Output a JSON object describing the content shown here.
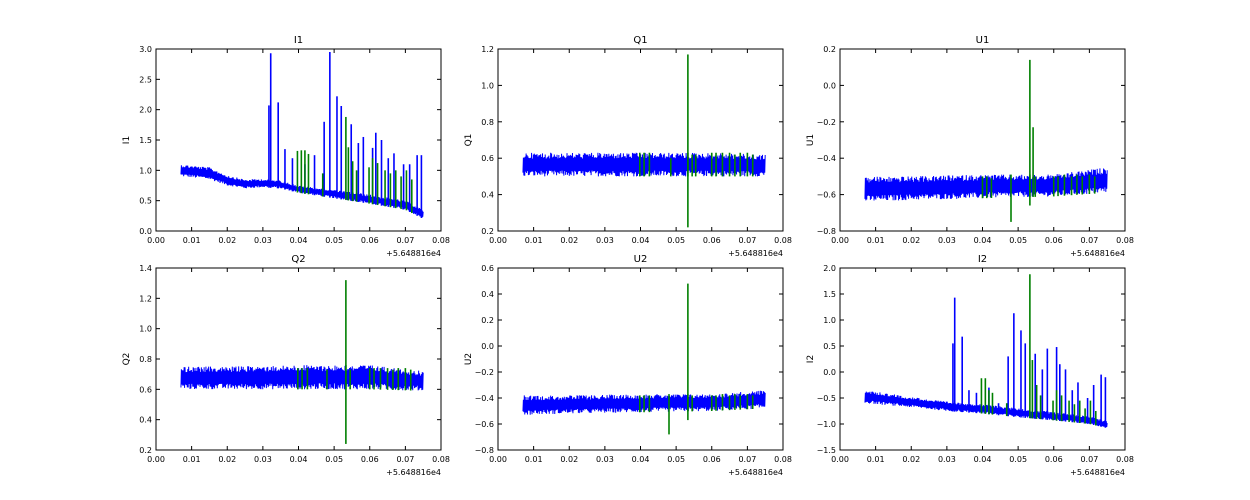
{
  "colors": {
    "series_main": "#0000ff",
    "series_flagged": "#008000",
    "axes": "#000000",
    "background": "#ffffff"
  },
  "chart_data": [
    {
      "type": "line",
      "title": "I1",
      "ylabel": "I1",
      "x_offset_label": "+5.648816e4",
      "xlim": [
        0.0,
        0.08
      ],
      "ylim": [
        0.0,
        3.0
      ],
      "xticks": [
        "0.00",
        "0.01",
        "0.02",
        "0.03",
        "0.04",
        "0.05",
        "0.06",
        "0.07",
        "0.08"
      ],
      "yticks": [
        "0.0",
        "0.5",
        "1.0",
        "1.5",
        "2.0",
        "2.5",
        "3.0"
      ],
      "series": [
        {
          "color": "blue",
          "x_range": [
            0.007,
            0.075
          ],
          "x": [
            0.007,
            0.015,
            0.02,
            0.025,
            0.03,
            0.035,
            0.04,
            0.05,
            0.06,
            0.07,
            0.075
          ],
          "lower": [
            0.9,
            0.85,
            0.75,
            0.7,
            0.72,
            0.7,
            0.63,
            0.54,
            0.45,
            0.35,
            0.2
          ],
          "upper": [
            1.1,
            1.05,
            0.92,
            0.85,
            0.86,
            0.83,
            0.75,
            0.68,
            0.6,
            0.5,
            0.35
          ],
          "spikes": [
            [
              0.0317,
              2.07
            ],
            [
              0.0322,
              2.93
            ],
            [
              0.0343,
              2.12
            ],
            [
              0.0362,
              1.35
            ],
            [
              0.0383,
              1.2
            ],
            [
              0.0418,
              1.1
            ],
            [
              0.0445,
              1.25
            ],
            [
              0.0472,
              1.8
            ],
            [
              0.0488,
              2.95
            ],
            [
              0.0508,
              2.22
            ],
            [
              0.052,
              2.06
            ],
            [
              0.0548,
              1.76
            ],
            [
              0.0568,
              1.45
            ],
            [
              0.0582,
              1.55
            ],
            [
              0.0608,
              1.37
            ],
            [
              0.0617,
              1.62
            ],
            [
              0.0633,
              1.5
            ],
            [
              0.0652,
              1.2
            ],
            [
              0.0668,
              1.28
            ],
            [
              0.0695,
              1.1
            ],
            [
              0.0712,
              1.1
            ],
            [
              0.0733,
              1.25
            ],
            [
              0.0745,
              1.25
            ]
          ]
        },
        {
          "color": "green",
          "spikes": [
            [
              0.0397,
              1.32
            ],
            [
              0.0408,
              1.33
            ],
            [
              0.0418,
              1.33
            ],
            [
              0.0428,
              1.27
            ],
            [
              0.0468,
              0.95
            ],
            [
              0.0533,
              1.88
            ],
            [
              0.054,
              1.38
            ],
            [
              0.0552,
              1.15
            ],
            [
              0.0563,
              1.0
            ],
            [
              0.0598,
              1.05
            ],
            [
              0.0608,
              1.2
            ],
            [
              0.0622,
              1.12
            ],
            [
              0.0643,
              1.0
            ],
            [
              0.0658,
              0.95
            ],
            [
              0.0673,
              1.0
            ],
            [
              0.0688,
              0.9
            ],
            [
              0.0703,
              1.0
            ],
            [
              0.0718,
              0.85
            ]
          ]
        }
      ]
    },
    {
      "type": "line",
      "title": "Q1",
      "ylabel": "Q1",
      "x_offset_label": "+5.648816e4",
      "xlim": [
        0.0,
        0.08
      ],
      "ylim": [
        0.2,
        1.2
      ],
      "xticks": [
        "0.00",
        "0.01",
        "0.02",
        "0.03",
        "0.04",
        "0.05",
        "0.06",
        "0.07",
        "0.08"
      ],
      "yticks": [
        "0.2",
        "0.4",
        "0.6",
        "0.8",
        "1.0",
        "1.2"
      ],
      "series": [
        {
          "color": "blue",
          "x_range": [
            0.007,
            0.075
          ],
          "x": [
            0.007,
            0.02,
            0.04,
            0.06,
            0.075
          ],
          "lower": [
            0.5,
            0.5,
            0.5,
            0.5,
            0.5
          ],
          "upper": [
            0.63,
            0.63,
            0.63,
            0.63,
            0.62
          ],
          "spikes": []
        },
        {
          "color": "green",
          "spikes": [
            [
              0.0398,
              0.63
            ],
            [
              0.041,
              0.63
            ],
            [
              0.0425,
              0.63
            ],
            [
              0.0485,
              0.6
            ],
            [
              0.0533,
              1.17
            ],
            [
              0.0545,
              0.62
            ],
            [
              0.0555,
              0.62
            ],
            [
              0.06,
              0.63
            ],
            [
              0.0612,
              0.63
            ],
            [
              0.063,
              0.63
            ],
            [
              0.065,
              0.63
            ],
            [
              0.0665,
              0.62
            ],
            [
              0.068,
              0.63
            ],
            [
              0.07,
              0.63
            ],
            [
              0.0715,
              0.62
            ]
          ],
          "dips": [
            [
              0.0533,
              0.22
            ]
          ]
        }
      ]
    },
    {
      "type": "line",
      "title": "U1",
      "ylabel": "U1",
      "x_offset_label": "+5.648816e4",
      "xlim": [
        0.0,
        0.08
      ],
      "ylim": [
        -0.8,
        0.2
      ],
      "xticks": [
        "0.00",
        "0.01",
        "0.02",
        "0.03",
        "0.04",
        "0.05",
        "0.06",
        "0.07",
        "0.08"
      ],
      "yticks": [
        "−0.8",
        "−0.6",
        "−0.4",
        "−0.2",
        "0.0",
        "0.2"
      ],
      "series": [
        {
          "color": "blue",
          "x_range": [
            0.007,
            0.075
          ],
          "x": [
            0.007,
            0.02,
            0.04,
            0.06,
            0.075
          ],
          "lower": [
            -0.64,
            -0.63,
            -0.62,
            -0.61,
            -0.59
          ],
          "upper": [
            -0.5,
            -0.5,
            -0.49,
            -0.49,
            -0.45
          ],
          "spikes": []
        },
        {
          "color": "green",
          "spikes": [
            [
              0.04,
              -0.5
            ],
            [
              0.0412,
              -0.5
            ],
            [
              0.0425,
              -0.51
            ],
            [
              0.0533,
              0.14
            ],
            [
              0.0542,
              -0.23
            ],
            [
              0.0548,
              -0.5
            ],
            [
              0.06,
              -0.5
            ],
            [
              0.0612,
              -0.5
            ],
            [
              0.063,
              -0.49
            ],
            [
              0.065,
              -0.5
            ],
            [
              0.0665,
              -0.49
            ],
            [
              0.068,
              -0.5
            ],
            [
              0.07,
              -0.49
            ],
            [
              0.0715,
              -0.5
            ]
          ],
          "dips": [
            [
              0.048,
              -0.75
            ],
            [
              0.0533,
              -0.66
            ]
          ]
        }
      ]
    },
    {
      "type": "line",
      "title": "Q2",
      "ylabel": "Q2",
      "x_offset_label": "+5.648816e4",
      "xlim": [
        0.0,
        0.08
      ],
      "ylim": [
        0.2,
        1.4
      ],
      "xticks": [
        "0.00",
        "0.01",
        "0.02",
        "0.03",
        "0.04",
        "0.05",
        "0.06",
        "0.07",
        "0.08"
      ],
      "yticks": [
        "0.2",
        "0.4",
        "0.6",
        "0.8",
        "1.0",
        "1.2",
        "1.4"
      ],
      "series": [
        {
          "color": "blue",
          "x_range": [
            0.007,
            0.075
          ],
          "x": [
            0.007,
            0.02,
            0.04,
            0.06,
            0.075
          ],
          "lower": [
            0.6,
            0.6,
            0.6,
            0.6,
            0.59
          ],
          "upper": [
            0.75,
            0.75,
            0.76,
            0.76,
            0.72
          ],
          "spikes": []
        },
        {
          "color": "green",
          "spikes": [
            [
              0.0398,
              0.74
            ],
            [
              0.041,
              0.74
            ],
            [
              0.0425,
              0.74
            ],
            [
              0.048,
              0.73
            ],
            [
              0.0533,
              1.32
            ],
            [
              0.0545,
              0.73
            ],
            [
              0.06,
              0.74
            ],
            [
              0.0612,
              0.74
            ],
            [
              0.063,
              0.74
            ],
            [
              0.065,
              0.74
            ],
            [
              0.0665,
              0.73
            ],
            [
              0.068,
              0.74
            ],
            [
              0.07,
              0.74
            ],
            [
              0.0715,
              0.73
            ]
          ],
          "dips": [
            [
              0.0533,
              0.24
            ]
          ]
        }
      ]
    },
    {
      "type": "line",
      "title": "U2",
      "ylabel": "U2",
      "x_offset_label": "+5.648816e4",
      "xlim": [
        0.0,
        0.08
      ],
      "ylim": [
        -0.8,
        0.6
      ],
      "xticks": [
        "0.00",
        "0.01",
        "0.02",
        "0.03",
        "0.04",
        "0.05",
        "0.06",
        "0.07",
        "0.08"
      ],
      "yticks": [
        "−0.8",
        "−0.6",
        "−0.4",
        "−0.2",
        "0.0",
        "0.2",
        "0.4",
        "0.6"
      ],
      "series": [
        {
          "color": "blue",
          "x_range": [
            0.007,
            0.075
          ],
          "x": [
            0.007,
            0.02,
            0.04,
            0.06,
            0.075
          ],
          "lower": [
            -0.53,
            -0.52,
            -0.51,
            -0.5,
            -0.48
          ],
          "upper": [
            -0.38,
            -0.38,
            -0.37,
            -0.37,
            -0.34
          ],
          "spikes": []
        },
        {
          "color": "green",
          "spikes": [
            [
              0.0398,
              -0.38
            ],
            [
              0.041,
              -0.38
            ],
            [
              0.0425,
              -0.38
            ],
            [
              0.0533,
              0.48
            ],
            [
              0.0545,
              -0.38
            ],
            [
              0.06,
              -0.38
            ],
            [
              0.0612,
              -0.38
            ],
            [
              0.063,
              -0.37
            ],
            [
              0.065,
              -0.38
            ],
            [
              0.0665,
              -0.37
            ],
            [
              0.068,
              -0.38
            ],
            [
              0.07,
              -0.37
            ],
            [
              0.0715,
              -0.38
            ]
          ],
          "dips": [
            [
              0.048,
              -0.68
            ],
            [
              0.0533,
              -0.57
            ]
          ]
        }
      ]
    },
    {
      "type": "line",
      "title": "I2",
      "ylabel": "I2",
      "x_offset_label": "+5.648816e4",
      "xlim": [
        0.0,
        0.08
      ],
      "ylim": [
        -1.5,
        2.0
      ],
      "xticks": [
        "0.00",
        "0.01",
        "0.02",
        "0.03",
        "0.04",
        "0.05",
        "0.06",
        "0.07",
        "0.08"
      ],
      "yticks": [
        "−1.5",
        "−1.0",
        "−0.5",
        "0.0",
        "0.5",
        "1.0",
        "1.5",
        "2.0"
      ],
      "series": [
        {
          "color": "blue",
          "x_range": [
            0.007,
            0.075
          ],
          "x": [
            0.007,
            0.02,
            0.03,
            0.04,
            0.05,
            0.06,
            0.07,
            0.075
          ],
          "lower": [
            -0.6,
            -0.68,
            -0.75,
            -0.8,
            -0.87,
            -0.93,
            -1.0,
            -1.08
          ],
          "upper": [
            -0.35,
            -0.48,
            -0.57,
            -0.62,
            -0.7,
            -0.77,
            -0.85,
            -0.95
          ],
          "spikes": [
            [
              0.0317,
              0.55
            ],
            [
              0.0322,
              1.43
            ],
            [
              0.0343,
              0.68
            ],
            [
              0.0362,
              -0.35
            ],
            [
              0.0383,
              -0.4
            ],
            [
              0.0418,
              -0.3
            ],
            [
              0.0445,
              -0.6
            ],
            [
              0.0472,
              0.3
            ],
            [
              0.0488,
              1.13
            ],
            [
              0.0508,
              0.8
            ],
            [
              0.052,
              0.55
            ],
            [
              0.0548,
              0.35
            ],
            [
              0.0568,
              0.05
            ],
            [
              0.0582,
              0.45
            ],
            [
              0.0608,
              0.48
            ],
            [
              0.0617,
              0.15
            ],
            [
              0.0633,
              0.05
            ],
            [
              0.0652,
              -0.35
            ],
            [
              0.0668,
              -0.2
            ],
            [
              0.0695,
              -0.5
            ],
            [
              0.0712,
              -0.25
            ],
            [
              0.0733,
              -0.05
            ],
            [
              0.0745,
              -0.1
            ]
          ]
        },
        {
          "color": "green",
          "spikes": [
            [
              0.0397,
              -0.12
            ],
            [
              0.0408,
              -0.12
            ],
            [
              0.0418,
              -0.35
            ],
            [
              0.0428,
              -0.4
            ],
            [
              0.0468,
              -0.6
            ],
            [
              0.0533,
              1.88
            ],
            [
              0.054,
              0.23
            ],
            [
              0.0552,
              -0.25
            ],
            [
              0.0563,
              -0.45
            ],
            [
              0.0598,
              -0.55
            ],
            [
              0.0608,
              -0.35
            ],
            [
              0.0622,
              -0.45
            ],
            [
              0.0643,
              -0.55
            ],
            [
              0.0658,
              -0.62
            ],
            [
              0.0673,
              -0.55
            ],
            [
              0.0688,
              -0.7
            ],
            [
              0.0703,
              -0.55
            ],
            [
              0.0718,
              -0.75
            ]
          ]
        }
      ]
    }
  ]
}
